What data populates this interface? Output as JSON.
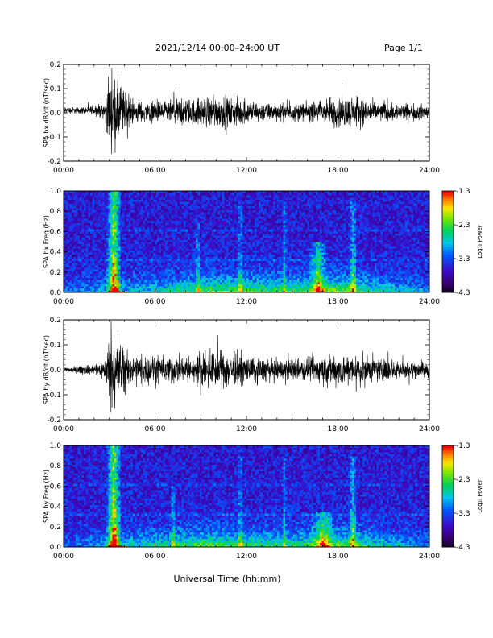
{
  "header": {
    "title": "2021/12/14  00:00–24:00 UT",
    "page": "Page 1/1"
  },
  "xlabel": "Universal Time (hh:mm)",
  "chart_data": [
    {
      "type": "line",
      "ylabel": "SPA bx dB/dt (nT/sec)",
      "xlim": [
        0,
        24
      ],
      "ylim": [
        -0.2,
        0.2
      ],
      "yticks": [
        "-0.2",
        "-0.1",
        "0.0",
        "0.1",
        "0.2"
      ],
      "xticks": [
        "00:00",
        "06:00",
        "12:00",
        "18:00",
        "24:00"
      ],
      "series": [
        {
          "color": "#000000",
          "envelope": {
            "x": [
              0,
              1,
              2,
              2.7,
              3.0,
              3.3,
              3.6,
              4.0,
              4.5,
              5.5,
              6.5,
              7.5,
              8.5,
              9.5,
              10.5,
              11.5,
              12.5,
              13.5,
              14.5,
              15.5,
              16.5,
              17.5,
              18.5,
              19.5,
              20.5,
              21.5,
              22.5,
              24
            ],
            "amp": [
              0.02,
              0.02,
              0.025,
              0.05,
              0.2,
              0.2,
              0.2,
              0.12,
              0.07,
              0.06,
              0.06,
              0.08,
              0.08,
              0.09,
              0.09,
              0.08,
              0.06,
              0.05,
              0.05,
              0.05,
              0.06,
              0.08,
              0.09,
              0.08,
              0.06,
              0.05,
              0.05,
              0.04
            ],
            "offset": 0.01
          }
        }
      ]
    },
    {
      "type": "heatmap",
      "ylabel": "SPA bx Freq (Hz)",
      "xlim": [
        0,
        24
      ],
      "ylim": [
        0,
        1.0
      ],
      "yticks": [
        "0.0",
        "0.2",
        "0.4",
        "0.6",
        "0.8",
        "1.0"
      ],
      "xticks": [
        "00:00",
        "06:00",
        "12:00",
        "18:00",
        "24:00"
      ],
      "colorbar": {
        "label": "Log₁₀ Power",
        "range": [
          -4.3,
          -1.3
        ],
        "ticks": [
          "-1.3",
          "-2.3",
          "-3.3",
          "-4.3"
        ]
      },
      "features": {
        "bursts": [
          {
            "t": 3.3,
            "w": 0.5,
            "strength": 1.0,
            "fmax": 1.0
          },
          {
            "t": 8.8,
            "w": 0.15,
            "strength": 0.4,
            "fmax": 0.7
          },
          {
            "t": 11.6,
            "w": 0.15,
            "strength": 0.35,
            "fmax": 0.9
          },
          {
            "t": 14.5,
            "w": 0.15,
            "strength": 0.4,
            "fmax": 0.9
          },
          {
            "t": 16.7,
            "w": 0.6,
            "strength": 0.5,
            "fmax": 0.5
          },
          {
            "t": 19.0,
            "w": 0.3,
            "strength": 0.45,
            "fmax": 0.9
          }
        ],
        "lowband": {
          "x": [
            0,
            3,
            6,
            9,
            12,
            15,
            18,
            20,
            24
          ],
          "level": [
            0.15,
            0.3,
            0.35,
            0.55,
            0.55,
            0.5,
            0.6,
            0.45,
            0.2
          ]
        }
      }
    },
    {
      "type": "line",
      "ylabel": "SPA by dB/dt (nT/sec)",
      "xlim": [
        0,
        24
      ],
      "ylim": [
        -0.2,
        0.2
      ],
      "yticks": [
        "-0.2",
        "-0.1",
        "0.0",
        "0.1",
        "0.2"
      ],
      "xticks": [
        "00:00",
        "06:00",
        "12:00",
        "18:00",
        "24:00"
      ],
      "series": [
        {
          "color": "#000000",
          "envelope": {
            "x": [
              0,
              1,
              2,
              2.7,
              3.0,
              3.3,
              3.6,
              4.0,
              4.5,
              5.5,
              6.5,
              7.5,
              8.5,
              9.5,
              10.5,
              11.5,
              12.5,
              13.5,
              14.5,
              15.5,
              16.5,
              17.5,
              18.5,
              19.5,
              20.5,
              21.5,
              22.5,
              24
            ],
            "amp": [
              0.015,
              0.02,
              0.03,
              0.06,
              0.2,
              0.2,
              0.2,
              0.12,
              0.07,
              0.08,
              0.07,
              0.08,
              0.07,
              0.1,
              0.1,
              0.08,
              0.07,
              0.06,
              0.06,
              0.06,
              0.07,
              0.09,
              0.09,
              0.08,
              0.07,
              0.06,
              0.05,
              0.05
            ],
            "offset": 0.0
          }
        }
      ]
    },
    {
      "type": "heatmap",
      "ylabel": "SPA by Freq (Hz)",
      "xlim": [
        0,
        24
      ],
      "ylim": [
        0,
        1.0
      ],
      "yticks": [
        "0.0",
        "0.2",
        "0.4",
        "0.6",
        "0.8",
        "1.0"
      ],
      "xticks": [
        "00:00",
        "06:00",
        "12:00",
        "18:00",
        "24:00"
      ],
      "colorbar": {
        "label": "Log₁₀ Power",
        "range": [
          -4.3,
          -1.3
        ],
        "ticks": [
          "-1.3",
          "-2.3",
          "-3.3",
          "-4.3"
        ]
      },
      "features": {
        "bursts": [
          {
            "t": 3.3,
            "w": 0.5,
            "strength": 1.0,
            "fmax": 1.0
          },
          {
            "t": 7.2,
            "w": 0.2,
            "strength": 0.35,
            "fmax": 0.6
          },
          {
            "t": 11.6,
            "w": 0.15,
            "strength": 0.35,
            "fmax": 0.9
          },
          {
            "t": 14.5,
            "w": 0.15,
            "strength": 0.35,
            "fmax": 0.9
          },
          {
            "t": 17.0,
            "w": 0.8,
            "strength": 0.45,
            "fmax": 0.35
          },
          {
            "t": 19.0,
            "w": 0.3,
            "strength": 0.45,
            "fmax": 0.9
          }
        ],
        "lowband": {
          "x": [
            0,
            3,
            6,
            9,
            12,
            15,
            18,
            20,
            24
          ],
          "level": [
            0.15,
            0.3,
            0.4,
            0.55,
            0.5,
            0.45,
            0.6,
            0.45,
            0.2
          ]
        }
      }
    }
  ]
}
